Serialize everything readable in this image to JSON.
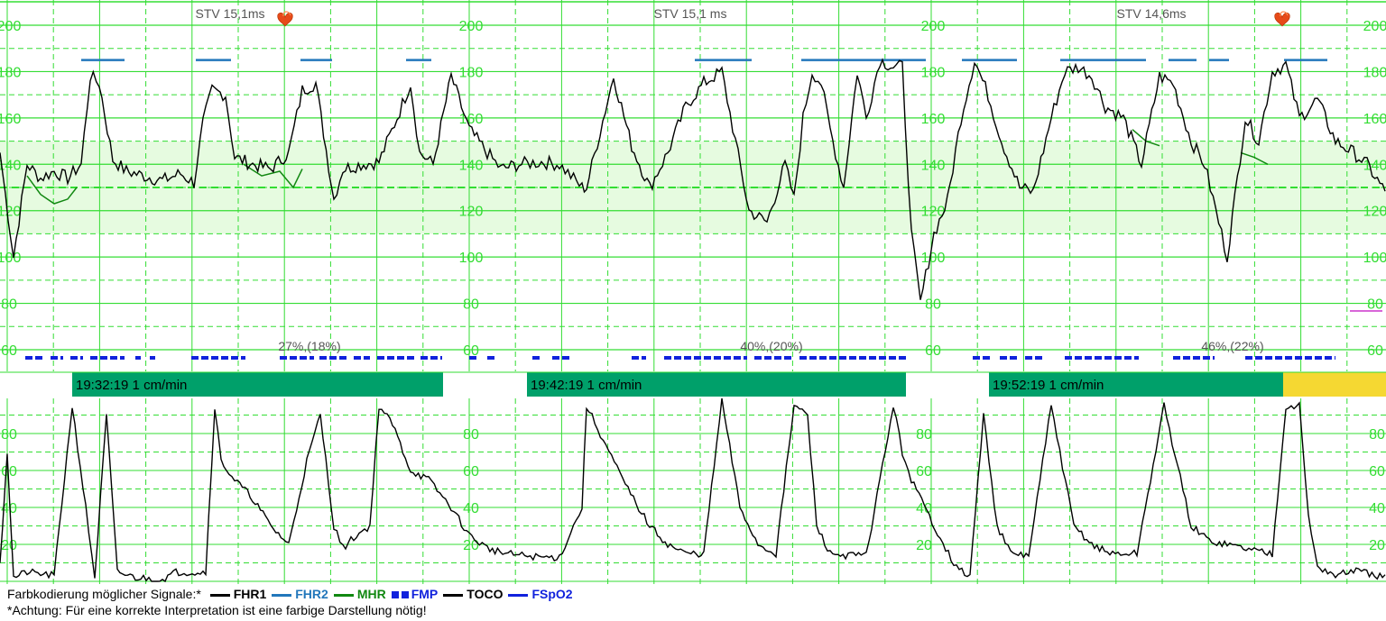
{
  "colors": {
    "grid": "#33dd33",
    "normal_band": "#e6fbe0",
    "time_band": "#00a06a",
    "time_band_alt": "#f5d832",
    "fhr1": "#000000",
    "fhr2": "#2277bb",
    "mhr": "#118811",
    "fmp": "#1122dd",
    "toco": "#000000",
    "fspo2": "#1122dd"
  },
  "chart_data": [
    {
      "type": "line",
      "title": "",
      "panel": "FHR",
      "ylim": [
        50,
        210
      ],
      "y_ticks": [
        60,
        80,
        100,
        120,
        140,
        160,
        180,
        200
      ],
      "normal_range": [
        110,
        150
      ],
      "grid": true,
      "stv_labels": [
        "STV 15,1ms",
        "STV 15,1 ms",
        "STV 14,6ms"
      ],
      "percent_labels": [
        "27%,(18%)",
        "40%,(20%)",
        "46%,(22%)"
      ],
      "series": [
        {
          "name": "FHR1",
          "x": [
            0,
            15,
            30,
            45,
            60,
            75,
            90,
            100,
            110,
            125,
            140,
            160,
            180,
            200,
            215,
            225,
            235,
            250,
            260,
            280,
            300,
            320,
            335,
            350,
            370,
            380,
            400,
            420,
            440,
            455,
            465,
            480,
            500,
            520,
            540,
            555,
            575,
            600,
            620,
            645,
            650,
            680,
            700,
            720,
            740,
            760,
            780,
            800,
            830,
            850,
            870,
            880,
            890,
            900,
            910,
            920,
            935,
            950,
            960,
            975,
            990,
            1000,
            1010,
            1020,
            1035,
            1050,
            1065,
            1080,
            1095,
            1110,
            1130,
            1145,
            1165,
            1180,
            1195,
            1210,
            1225,
            1245,
            1265,
            1285,
            1300,
            1320,
            1335,
            1360,
            1380,
            1395,
            1410,
            1425,
            1440,
            1460,
            1480,
            1500,
            1515,
            1535
          ],
          "y": [
            145,
            100,
            140,
            134,
            137,
            134,
            140,
            178,
            175,
            142,
            137,
            135,
            133,
            136,
            132,
            158,
            172,
            170,
            143,
            140,
            138,
            145,
            172,
            175,
            125,
            138,
            140,
            141,
            160,
            175,
            145,
            140,
            178,
            155,
            145,
            138,
            140,
            141,
            140,
            130,
            130,
            178,
            148,
            130,
            145,
            165,
            175,
            180,
            120,
            115,
            140,
            125,
            160,
            180,
            175,
            155,
            130,
            180,
            160,
            185,
            182,
            182,
            110,
            80,
            110,
            124,
            160,
            185,
            170,
            150,
            130,
            128,
            160,
            180,
            182,
            178,
            165,
            160,
            140,
            178,
            175,
            150,
            140,
            100,
            160,
            150,
            180,
            183,
            160,
            168,
            150,
            145,
            140,
            128
          ]
        },
        {
          "name": "FHR2",
          "segments": [
            [
              90,
              138
            ],
            [
              217,
              256
            ],
            [
              333,
              368
            ],
            [
              450,
              478
            ],
            [
              770,
              833
            ],
            [
              888,
              1026
            ],
            [
              1066,
              1127
            ],
            [
              1175,
              1270
            ],
            [
              1295,
              1326
            ],
            [
              1340,
              1362
            ],
            [
              1423,
              1471
            ]
          ],
          "value": 185
        },
        {
          "name": "MHR",
          "x": [
            30,
            45,
            60,
            75,
            85,
            270,
            290,
            310,
            325,
            335,
            1255,
            1270,
            1285,
            1375,
            1390,
            1405
          ],
          "y": [
            135,
            127,
            123,
            125,
            130,
            140,
            135,
            137,
            130,
            138,
            155,
            150,
            148,
            145,
            143,
            140
          ]
        }
      ]
    },
    {
      "type": "line",
      "title": "",
      "panel": "TOCO",
      "ylim": [
        0,
        100
      ],
      "y_ticks": [
        20,
        40,
        60,
        80
      ],
      "grid": true,
      "time_labels": [
        "19:32:19  1 cm/min",
        "19:42:19  1 cm/min",
        "19:52:19  1 cm/min"
      ],
      "series": [
        {
          "name": "TOCO",
          "x": [
            0,
            8,
            15,
            30,
            60,
            80,
            95,
            105,
            118,
            130,
            150,
            180,
            195,
            228,
            238,
            245,
            260,
            280,
            300,
            320,
            340,
            355,
            370,
            380,
            395,
            410,
            420,
            435,
            455,
            475,
            500,
            520,
            540,
            560,
            600,
            620,
            645,
            650,
            690,
            705,
            720,
            740,
            760,
            780,
            800,
            820,
            840,
            860,
            880,
            895,
            905,
            920,
            940,
            960,
            990,
            1000,
            1010,
            1030,
            1060,
            1075,
            1090,
            1105,
            1120,
            1140,
            1165,
            1190,
            1210,
            1230,
            1260,
            1290,
            1320,
            1340,
            1360,
            1390,
            1410,
            1425,
            1440,
            1450,
            1460,
            1480,
            1500,
            1535
          ],
          "y": [
            10,
            70,
            2,
            5,
            3,
            95,
            40,
            2,
            90,
            5,
            2,
            1,
            5,
            5,
            95,
            65,
            55,
            45,
            30,
            20,
            65,
            90,
            30,
            18,
            25,
            30,
            95,
            85,
            60,
            55,
            40,
            25,
            18,
            15,
            13,
            13,
            40,
            95,
            55,
            42,
            30,
            20,
            15,
            15,
            98,
            40,
            20,
            15,
            95,
            90,
            30,
            15,
            14,
            14,
            95,
            70,
            55,
            35,
            7,
            3,
            90,
            30,
            15,
            14,
            95,
            30,
            20,
            15,
            15,
            95,
            30,
            22,
            20,
            17,
            15,
            95,
            95,
            35,
            8,
            3,
            6,
            2
          ]
        }
      ]
    }
  ],
  "legend": {
    "intro": "Farbkodierung möglicher Signale:*",
    "items": [
      {
        "label": "FHR1",
        "kind": "line",
        "color_key": "fhr1"
      },
      {
        "label": "FHR2",
        "kind": "line",
        "color_key": "fhr2"
      },
      {
        "label": "MHR",
        "kind": "line",
        "color_key": "mhr"
      },
      {
        "label": "FMP",
        "kind": "squares",
        "color_key": "fmp"
      },
      {
        "label": "TOCO",
        "kind": "line",
        "color_key": "toco"
      },
      {
        "label": "FSpO2",
        "kind": "line",
        "color_key": "fspo2"
      }
    ],
    "note": "*Achtung: Für eine korrekte Interpretation ist eine farbige Darstellung nötig!"
  }
}
